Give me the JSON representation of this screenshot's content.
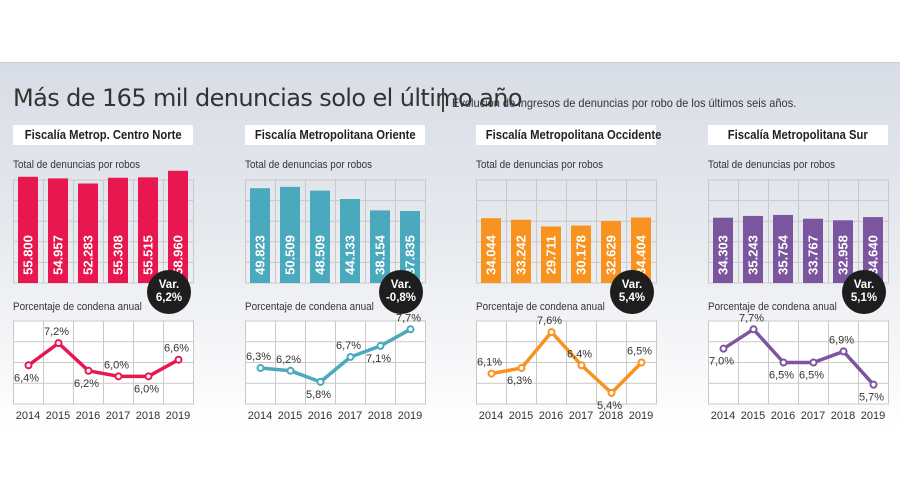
{
  "header": {
    "title": "Más de 165 mil denuncias solo el último año",
    "subtitle": "Evolución de ingresos de denuncias por robo de los últimos seis años."
  },
  "labels": {
    "bars_label": "Total de denuncias por robos",
    "line_label": "Porcentaje de condena anual",
    "var_prefix": "Var."
  },
  "chart_data": [
    {
      "type": "bar",
      "title": "Fiscalía Metrop. Centro Norte",
      "subtitle": "Total de denuncias por robos",
      "categories": [
        "2014",
        "2015",
        "2016",
        "2017",
        "2018",
        "2019"
      ],
      "values": [
        55800,
        54957,
        52283,
        55308,
        55515,
        58960
      ],
      "value_labels": [
        "55.800",
        "54.957",
        "52.283",
        "55.308",
        "55.515",
        "58.960"
      ],
      "variation": "6,2%",
      "color": "#e8174f",
      "line": {
        "type": "line",
        "title": "Porcentaje de condena anual",
        "x": [
          "2014",
          "2015",
          "2016",
          "2017",
          "2018",
          "2019"
        ],
        "y": [
          6.4,
          7.2,
          6.2,
          6.0,
          6.0,
          6.6
        ],
        "point_labels": [
          "6,4%",
          "7,2%",
          "6,2%",
          "6,0%",
          "6,0%",
          "6,6%"
        ],
        "label_pos": [
          "below",
          "above",
          "below",
          "above",
          "below",
          "above"
        ]
      }
    },
    {
      "type": "bar",
      "title": "Fiscalía Metropolitana Oriente",
      "subtitle": "Total de denuncias por robos",
      "categories": [
        "2014",
        "2015",
        "2016",
        "2017",
        "2018",
        "2019"
      ],
      "values": [
        49823,
        50509,
        48509,
        44133,
        38154,
        37835
      ],
      "value_labels": [
        "49.823",
        "50.509",
        "48.509",
        "44.133",
        "38.154",
        "37.835"
      ],
      "variation": "-0,8%",
      "color": "#4ba9bd",
      "line": {
        "type": "line",
        "title": "Porcentaje de condena anual",
        "x": [
          "2014",
          "2015",
          "2016",
          "2017",
          "2018",
          "2019"
        ],
        "y": [
          6.3,
          6.2,
          5.8,
          6.7,
          7.1,
          7.7
        ],
        "point_labels": [
          "6,3%",
          "6,2%",
          "5,8%",
          "6,7%",
          "7,1%",
          "7,7%"
        ],
        "label_pos": [
          "above",
          "above",
          "below",
          "above",
          "below",
          "above"
        ]
      }
    },
    {
      "type": "bar",
      "title": "Fiscalía Metropolitana Occidente",
      "subtitle": "Total de denuncias por robos",
      "categories": [
        "2014",
        "2015",
        "2016",
        "2017",
        "2018",
        "2019"
      ],
      "values": [
        34044,
        33242,
        29711,
        30178,
        32629,
        34404
      ],
      "value_labels": [
        "34.044",
        "33.242",
        "29.711",
        "30.178",
        "32.629",
        "34.404"
      ],
      "variation": "5,4%",
      "color": "#f7931e",
      "line": {
        "type": "line",
        "title": "Porcentaje de condena anual",
        "x": [
          "2014",
          "2015",
          "2016",
          "2017",
          "2018",
          "2019"
        ],
        "y": [
          6.1,
          6.3,
          7.6,
          6.4,
          5.4,
          6.5
        ],
        "point_labels": [
          "6,1%",
          "6,3%",
          "7,6%",
          "6,4%",
          "5,4%",
          "6,5%"
        ],
        "label_pos": [
          "above",
          "below",
          "above",
          "above",
          "below",
          "above"
        ]
      }
    },
    {
      "type": "bar",
      "title": "Fiscalía Metropolitana Sur",
      "subtitle": "Total de denuncias por robos",
      "categories": [
        "2014",
        "2015",
        "2016",
        "2017",
        "2018",
        "2019"
      ],
      "values": [
        34303,
        35243,
        35754,
        33767,
        32958,
        34640
      ],
      "value_labels": [
        "34.303",
        "35.243",
        "35.754",
        "33.767",
        "32.958",
        "34.640"
      ],
      "variation": "5,1%",
      "color": "#7b569f",
      "line": {
        "type": "line",
        "title": "Porcentaje de condena anual",
        "x": [
          "2014",
          "2015",
          "2016",
          "2017",
          "2018",
          "2019"
        ],
        "y": [
          7.0,
          7.7,
          6.5,
          6.5,
          6.9,
          5.7
        ],
        "point_labels": [
          "7,0%",
          "7,7%",
          "6,5%",
          "6,5%",
          "6,9%",
          "5,7%"
        ],
        "label_pos": [
          "below",
          "above",
          "below",
          "below",
          "above",
          "below"
        ]
      }
    }
  ]
}
